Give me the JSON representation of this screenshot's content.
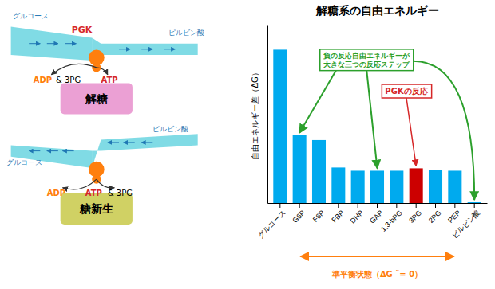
{
  "chart_data": {
    "type": "bar",
    "title": "解糖系の自由エネルギー",
    "categories": [
      "グルコース",
      "G6P",
      "F6P",
      "FBP",
      "DHP",
      "GAP",
      "1,3-bPG",
      "3PG",
      "2PG",
      "PEP",
      "ピルビン酸"
    ],
    "values": [
      9.5,
      4.2,
      3.9,
      2.2,
      2.0,
      2.0,
      2.0,
      2.15,
      2.05,
      2.0,
      0.05
    ],
    "colors": [
      "#00aaee",
      "#00aaee",
      "#00aaee",
      "#00aaee",
      "#00aaee",
      "#00aaee",
      "#00aaee",
      "#cc0000",
      "#00aaee",
      "#00aaee",
      "#00aaee"
    ],
    "y_label": "自由エネルギー差（ΔG）",
    "ylim": [
      0,
      11
    ],
    "tick_labels": "x",
    "grid": false,
    "annotations": [
      "グルコース",
      "PGK",
      "ピルビン酸",
      "ADP",
      "& 3PG",
      "ATP",
      "解糖",
      "ピルビン酸",
      "グルコース",
      "ADP",
      "ATP",
      "& 3PG",
      "糖新生",
      "負の反応自由エネルギーが\n大きな三つの反応ステップ",
      "PGKの反応",
      "準平衡状態（ΔG ˜= 0）"
    ]
  }
}
